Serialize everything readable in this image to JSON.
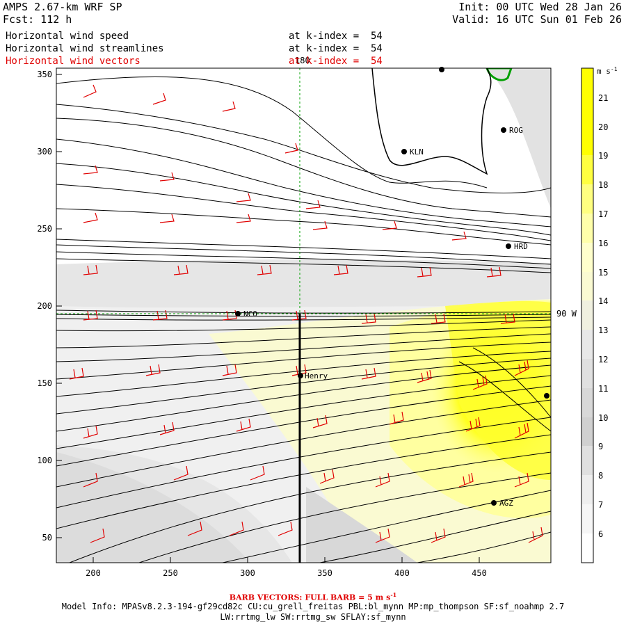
{
  "header": {
    "title": "AMPS 2.67-km WRF SP",
    "forecast": "Fcst: 112 h",
    "init": "Init: 00 UTC Wed 28 Jan 26",
    "valid": "Valid: 16 UTC Sun 01 Feb 26",
    "fields": [
      {
        "name": "Horizontal wind speed",
        "level": "at k-index =  54",
        "color": "#000000"
      },
      {
        "name": "Horizontal wind streamlines",
        "level": "at k-index =  54",
        "color": "#000000"
      },
      {
        "name": "Horizontal wind vectors",
        "level": "at k-index =  54",
        "color": "#e00000"
      }
    ]
  },
  "map": {
    "x_ticks": [
      "200",
      "250",
      "300",
      "350",
      "400",
      "450"
    ],
    "y_ticks": [
      "350",
      "300",
      "250",
      "200",
      "150",
      "100",
      "50"
    ],
    "meridian_label": "180",
    "parallel_label": "90 W",
    "stations": [
      "KLN",
      "ROG",
      "HRD",
      "NCO",
      "Henry",
      "AGZ"
    ]
  },
  "colorbar": {
    "unit": "m s",
    "unit_sup": "-1",
    "labels": [
      "21",
      "20",
      "19",
      "18",
      "17",
      "16",
      "15",
      "14",
      "13",
      "12",
      "11",
      "10",
      "9",
      "8",
      "7",
      "6"
    ]
  },
  "footer": {
    "barb_label": "BARB VECTORS:  FULL BARB = 5 m s",
    "barb_sup": "-1",
    "model_info": "Model Info: MPASv8.2.3-194-gf29cd82c CU:cu_grell_freitas PBL:bl_mynn MP:mp_thompson SF:sf_noahmp 2.7",
    "model_info_2": "LW:rrtmg_lw SW:rrtmg_sw SFLAY:sf_mynn"
  }
}
